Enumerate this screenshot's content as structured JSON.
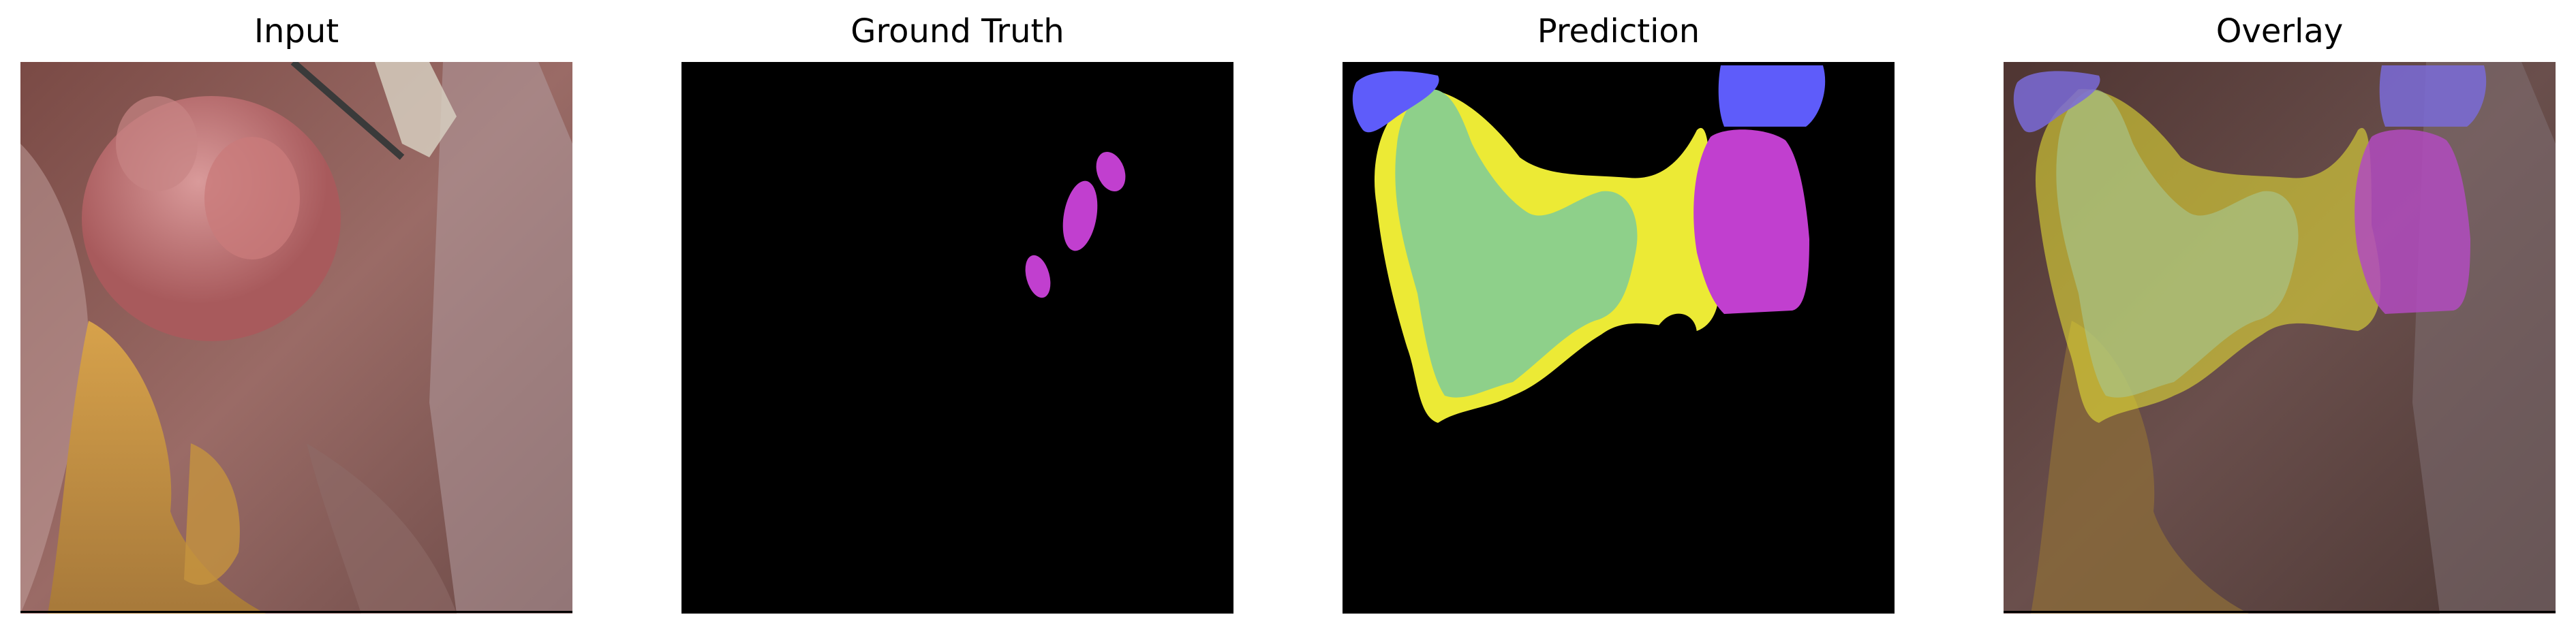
{
  "panels": [
    {
      "title": "Input"
    },
    {
      "title": "Ground Truth"
    },
    {
      "title": "Prediction"
    },
    {
      "title": "Overlay"
    }
  ],
  "colors": {
    "background": "#000000",
    "tissue": "#8e5f5a",
    "fat": "#c89a4a",
    "mask_purple": "#c13fcf",
    "mask_blue": "#5e5cfa",
    "mask_green": "#8ed08a",
    "mask_yellow": "#ecea35"
  }
}
